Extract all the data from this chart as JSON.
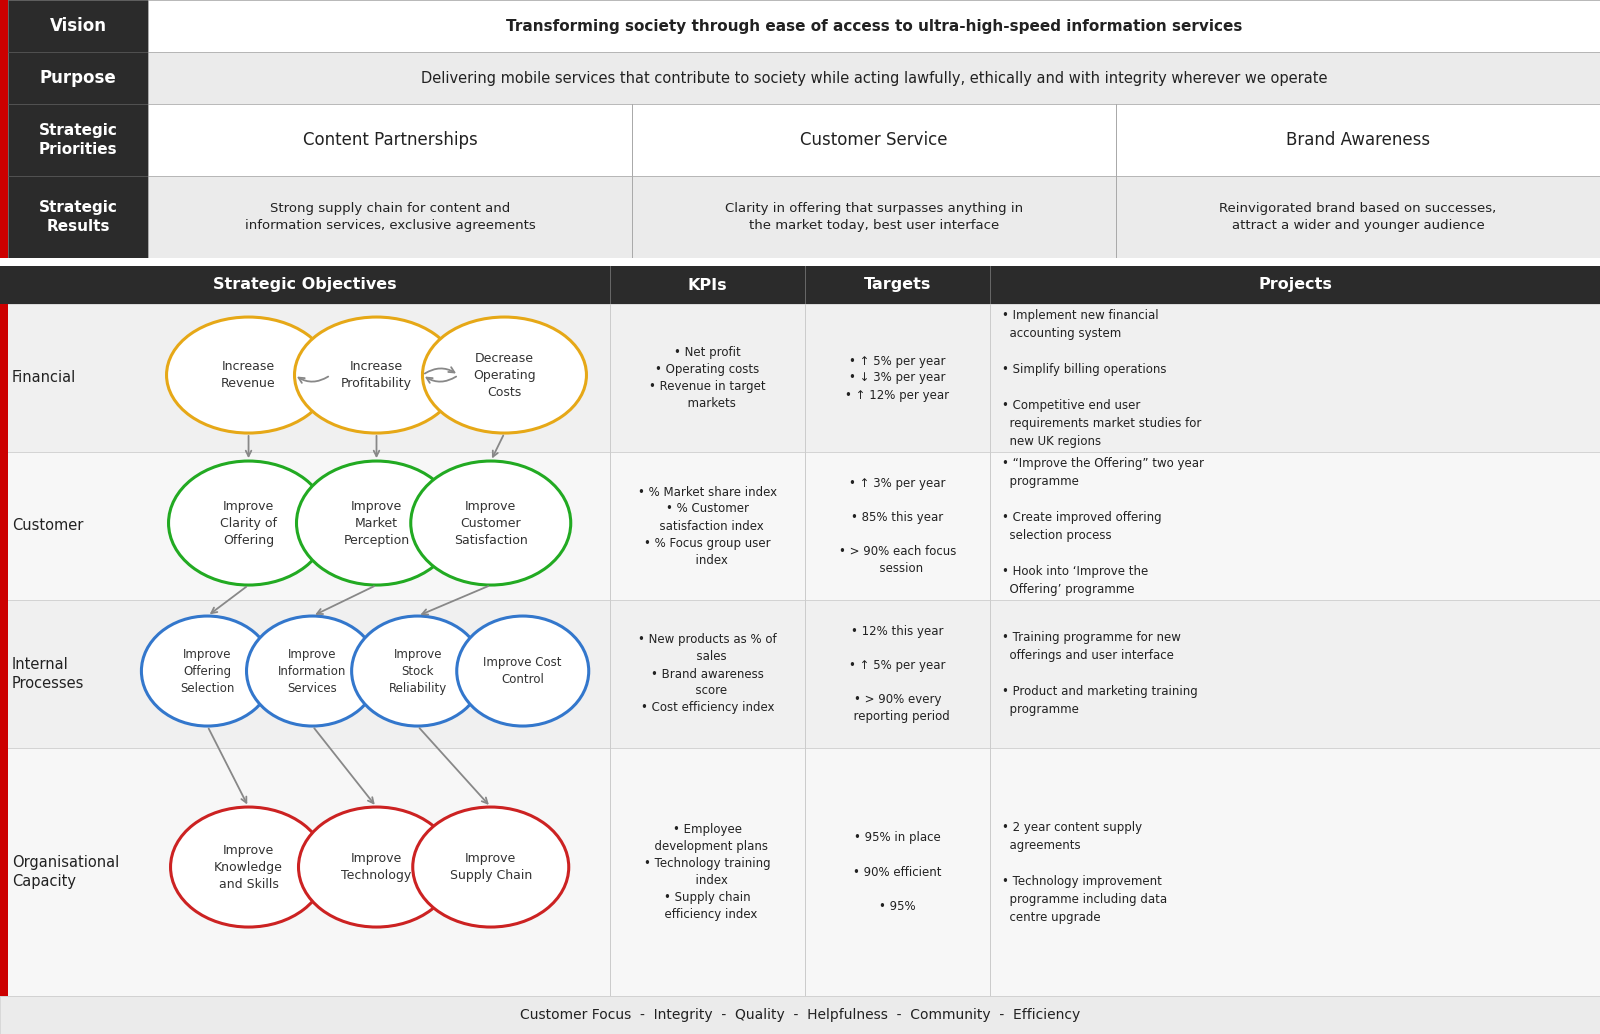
{
  "bg_color": "#ffffff",
  "dark_header_bg": "#2b2b2b",
  "light_row_bg": "#ececec",
  "white_row_bg": "#f7f7f7",
  "red_accent": "#cc0000",
  "header_text_color": "#ffffff",
  "body_text_color": "#222222",
  "vision_text": "Transforming society through ease of access to ultra-high-speed information services",
  "purpose_text": "Delivering mobile services that contribute to society while acting lawfully, ethically and with integrity wherever we operate",
  "strategic_priorities": [
    "Content Partnerships",
    "Customer Service",
    "Brand Awareness"
  ],
  "strategic_results": [
    "Strong supply chain for content and\ninformation services, exclusive agreements",
    "Clarity in offering that surpasses anything in\nthe market today, best user interface",
    "Reinvigorated brand based on successes,\nattract a wider and younger audience"
  ],
  "section_headers": [
    "Strategic Objectives",
    "KPIs",
    "Targets",
    "Projects"
  ],
  "row_labels": [
    "Financial",
    "Customer",
    "Internal\nProcesses",
    "Organisational\nCapacity"
  ],
  "financial_ellipses": [
    {
      "label": "Increase\nRevenue",
      "color": "#e6a817"
    },
    {
      "label": "Increase\nProfitability",
      "color": "#e6a817"
    },
    {
      "label": "Decrease\nOperating\nCosts",
      "color": "#e6a817"
    }
  ],
  "customer_ellipses": [
    {
      "label": "Improve\nClarity of\nOffering",
      "color": "#22aa22"
    },
    {
      "label": "Improve\nMarket\nPerception",
      "color": "#22aa22"
    },
    {
      "label": "Improve\nCustomer\nSatisfaction",
      "color": "#22aa22"
    }
  ],
  "internal_ellipses": [
    {
      "label": "Improve\nOffering\nSelection",
      "color": "#3377cc"
    },
    {
      "label": "Improve\nInformation\nServices",
      "color": "#3377cc"
    },
    {
      "label": "Improve\nStock\nReliability",
      "color": "#3377cc"
    },
    {
      "label": "Improve Cost\nControl",
      "color": "#3377cc"
    }
  ],
  "org_ellipses": [
    {
      "label": "Improve\nKnowledge\nand Skills",
      "color": "#cc2222"
    },
    {
      "label": "Improve\nTechnology",
      "color": "#cc2222"
    },
    {
      "label": "Improve\nSupply Chain",
      "color": "#cc2222"
    }
  ],
  "kpis": [
    "• Net profit\n• Operating costs\n• Revenue in target\n  markets",
    "• % Market share index\n• % Customer\n  satisfaction index\n• % Focus group user\n  index",
    "• New products as % of\n  sales\n• Brand awareness\n  score\n• Cost efficiency index",
    "• Employee\n  development plans\n• Technology training\n  index\n• Supply chain\n  efficiency index"
  ],
  "targets": [
    "• ↑ 5% per year\n• ↓ 3% per year\n• ↑ 12% per year",
    "• ↑ 3% per year\n\n• 85% this year\n\n• > 90% each focus\n  session",
    "• 12% this year\n\n• ↑ 5% per year\n\n• > 90% every\n  reporting period",
    "• 95% in place\n\n• 90% efficient\n\n• 95%"
  ],
  "projects_per_row": [
    "• Implement new financial\n  accounting system\n\n• Simplify billing operations\n\n• Competitive end user\n  requirements market studies for\n  new UK regions",
    "• “Improve the Offering” two year\n  programme\n\n• Create improved offering\n  selection process\n\n• Hook into ‘Improve the\n  Offering’ programme",
    "• Training programme for new\n  offerings and user interface\n\n• Product and marketing training\n  programme",
    "• 2 year content supply\n  agreements\n\n• Technology improvement\n  programme including data\n  centre upgrade"
  ],
  "footer_text": "Customer Focus  -  Integrity  -  Quality  -  Helpfulness  -  Community  -  Efficiency"
}
